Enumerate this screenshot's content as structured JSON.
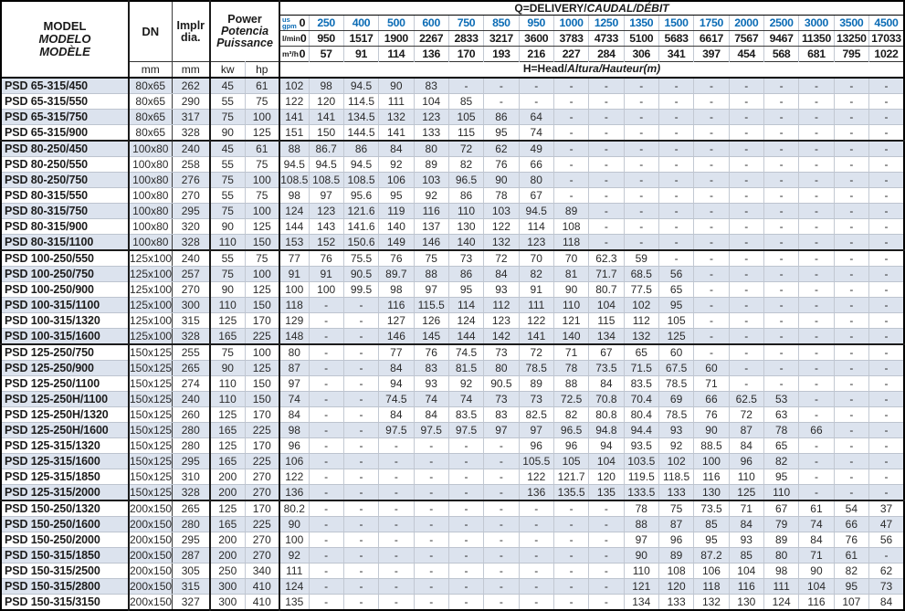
{
  "colors": {
    "accent_blue": "#0c6cb5",
    "row_shade": "#dce3ee",
    "grid_dark": "#1b1b1b",
    "grid_light": "#c2c8d2"
  },
  "table": {
    "header": {
      "model": {
        "line1": "MODEL",
        "line2": "MODELO",
        "line3": "MODÈLE"
      },
      "dn_label": "DN",
      "implr": {
        "line1": "Implr",
        "line2": "dia."
      },
      "power": {
        "line1": "Power",
        "line2": "Potencia",
        "line3": "Puissance"
      },
      "units": {
        "mm1": "mm",
        "mm2": "mm",
        "kw": "kw",
        "hp": "hp"
      },
      "q_title": {
        "plain": "Q=DELIVERY/",
        "italic": "CAUDAL/DÉBIT"
      },
      "h_title": {
        "plain": "H=Head/",
        "italic": "Altura/Hauteur",
        "suffix": "(m)"
      },
      "flow_rows": [
        {
          "unit_top": "us",
          "unit_bottom": "gpm",
          "values": [
            "0",
            "250",
            "400",
            "500",
            "600",
            "750",
            "850",
            "950",
            "1000",
            "1250",
            "1350",
            "1500",
            "1750",
            "2000",
            "2500",
            "3000",
            "3500",
            "4500"
          ]
        },
        {
          "unit": "l/min",
          "values": [
            "0",
            "950",
            "1517",
            "1900",
            "2267",
            "2833",
            "3217",
            "3600",
            "3783",
            "4733",
            "5100",
            "5683",
            "6617",
            "7567",
            "9467",
            "11350",
            "13250",
            "17033"
          ]
        },
        {
          "unit": "m³/h",
          "values": [
            "0",
            "57",
            "91",
            "114",
            "136",
            "170",
            "193",
            "216",
            "227",
            "284",
            "306",
            "341",
            "397",
            "454",
            "568",
            "681",
            "795",
            "1022"
          ]
        }
      ]
    },
    "rows": [
      {
        "model": "PSD 65-315/450",
        "dn": "80x65",
        "dia": "262",
        "kw": "45",
        "hp": "61",
        "shaded": true,
        "group_end": false,
        "heads": [
          "102",
          "98",
          "94.5",
          "90",
          "83",
          "-",
          "-",
          "-",
          "-",
          "-",
          "-",
          "-",
          "-",
          "-",
          "-",
          "-",
          "-",
          "-"
        ]
      },
      {
        "model": "PSD 65-315/550",
        "dn": "80x65",
        "dia": "290",
        "kw": "55",
        "hp": "75",
        "shaded": false,
        "group_end": false,
        "heads": [
          "122",
          "120",
          "114.5",
          "111",
          "104",
          "85",
          "-",
          "-",
          "-",
          "-",
          "-",
          "-",
          "-",
          "-",
          "-",
          "-",
          "-",
          "-"
        ]
      },
      {
        "model": "PSD 65-315/750",
        "dn": "80x65",
        "dia": "317",
        "kw": "75",
        "hp": "100",
        "shaded": true,
        "group_end": false,
        "heads": [
          "141",
          "141",
          "134.5",
          "132",
          "123",
          "105",
          "86",
          "64",
          "-",
          "-",
          "-",
          "-",
          "-",
          "-",
          "-",
          "-",
          "-",
          "-"
        ]
      },
      {
        "model": "PSD 65-315/900",
        "dn": "80x65",
        "dia": "328",
        "kw": "90",
        "hp": "125",
        "shaded": false,
        "group_end": true,
        "heads": [
          "151",
          "150",
          "144.5",
          "141",
          "133",
          "115",
          "95",
          "74",
          "-",
          "-",
          "-",
          "-",
          "-",
          "-",
          "-",
          "-",
          "-",
          "-"
        ]
      },
      {
        "model": "PSD 80-250/450",
        "dn": "100x80",
        "dia": "240",
        "kw": "45",
        "hp": "61",
        "shaded": true,
        "group_end": false,
        "heads": [
          "88",
          "86.7",
          "86",
          "84",
          "80",
          "72",
          "62",
          "49",
          "-",
          "-",
          "-",
          "-",
          "-",
          "-",
          "-",
          "-",
          "-",
          "-"
        ]
      },
      {
        "model": "PSD 80-250/550",
        "dn": "100x80",
        "dia": "258",
        "kw": "55",
        "hp": "75",
        "shaded": false,
        "group_end": false,
        "heads": [
          "94.5",
          "94.5",
          "94.5",
          "92",
          "89",
          "82",
          "76",
          "66",
          "-",
          "-",
          "-",
          "-",
          "-",
          "-",
          "-",
          "-",
          "-",
          "-"
        ]
      },
      {
        "model": "PSD 80-250/750",
        "dn": "100x80",
        "dia": "276",
        "kw": "75",
        "hp": "100",
        "shaded": true,
        "group_end": false,
        "heads": [
          "108.5",
          "108.5",
          "108.5",
          "106",
          "103",
          "96.5",
          "90",
          "80",
          "-",
          "-",
          "-",
          "-",
          "-",
          "-",
          "-",
          "-",
          "-",
          "-"
        ]
      },
      {
        "model": "PSD 80-315/550",
        "dn": "100x80",
        "dia": "270",
        "kw": "55",
        "hp": "75",
        "shaded": false,
        "group_end": false,
        "heads": [
          "98",
          "97",
          "95.6",
          "95",
          "92",
          "86",
          "78",
          "67",
          "-",
          "-",
          "-",
          "-",
          "-",
          "-",
          "-",
          "-",
          "-",
          "-"
        ]
      },
      {
        "model": "PSD 80-315/750",
        "dn": "100x80",
        "dia": "295",
        "kw": "75",
        "hp": "100",
        "shaded": true,
        "group_end": false,
        "heads": [
          "124",
          "123",
          "121.6",
          "119",
          "116",
          "110",
          "103",
          "94.5",
          "89",
          "-",
          "-",
          "-",
          "-",
          "-",
          "-",
          "-",
          "-",
          "-"
        ]
      },
      {
        "model": "PSD 80-315/900",
        "dn": "100x80",
        "dia": "320",
        "kw": "90",
        "hp": "125",
        "shaded": false,
        "group_end": false,
        "heads": [
          "144",
          "143",
          "141.6",
          "140",
          "137",
          "130",
          "122",
          "114",
          "108",
          "-",
          "-",
          "-",
          "-",
          "-",
          "-",
          "-",
          "-",
          "-"
        ]
      },
      {
        "model": "PSD 80-315/1100",
        "dn": "100x80",
        "dia": "328",
        "kw": "110",
        "hp": "150",
        "shaded": true,
        "group_end": true,
        "heads": [
          "153",
          "152",
          "150.6",
          "149",
          "146",
          "140",
          "132",
          "123",
          "118",
          "-",
          "-",
          "-",
          "-",
          "-",
          "-",
          "-",
          "-",
          "-"
        ]
      },
      {
        "model": "PSD 100-250/550",
        "dn": "125x100",
        "dia": "240",
        "kw": "55",
        "hp": "75",
        "shaded": false,
        "group_end": false,
        "heads": [
          "77",
          "76",
          "75.5",
          "76",
          "75",
          "73",
          "72",
          "70",
          "70",
          "62.3",
          "59",
          "-",
          "-",
          "-",
          "-",
          "-",
          "-",
          "-"
        ]
      },
      {
        "model": "PSD 100-250/750",
        "dn": "125x100",
        "dia": "257",
        "kw": "75",
        "hp": "100",
        "shaded": true,
        "group_end": false,
        "heads": [
          "91",
          "91",
          "90.5",
          "89.7",
          "88",
          "86",
          "84",
          "82",
          "81",
          "71.7",
          "68.5",
          "56",
          "-",
          "-",
          "-",
          "-",
          "-",
          "-"
        ]
      },
      {
        "model": "PSD 100-250/900",
        "dn": "125x100",
        "dia": "270",
        "kw": "90",
        "hp": "125",
        "shaded": false,
        "group_end": false,
        "heads": [
          "100",
          "100",
          "99.5",
          "98",
          "97",
          "95",
          "93",
          "91",
          "90",
          "80.7",
          "77.5",
          "65",
          "-",
          "-",
          "-",
          "-",
          "-",
          "-"
        ]
      },
      {
        "model": "PSD 100-315/1100",
        "dn": "125x100",
        "dia": "300",
        "kw": "110",
        "hp": "150",
        "shaded": true,
        "group_end": false,
        "heads": [
          "118",
          "-",
          "-",
          "116",
          "115.5",
          "114",
          "112",
          "111",
          "110",
          "104",
          "102",
          "95",
          "-",
          "-",
          "-",
          "-",
          "-",
          "-"
        ]
      },
      {
        "model": "PSD 100-315/1320",
        "dn": "125x100",
        "dia": "315",
        "kw": "125",
        "hp": "170",
        "shaded": false,
        "group_end": false,
        "heads": [
          "129",
          "-",
          "-",
          "127",
          "126",
          "124",
          "123",
          "122",
          "121",
          "115",
          "112",
          "105",
          "-",
          "-",
          "-",
          "-",
          "-",
          "-"
        ]
      },
      {
        "model": "PSD 100-315/1600",
        "dn": "125x100",
        "dia": "328",
        "kw": "165",
        "hp": "225",
        "shaded": true,
        "group_end": true,
        "heads": [
          "148",
          "-",
          "-",
          "146",
          "145",
          "144",
          "142",
          "141",
          "140",
          "134",
          "132",
          "125",
          "-",
          "-",
          "-",
          "-",
          "-",
          "-"
        ]
      },
      {
        "model": "PSD 125-250/750",
        "dn": "150x125",
        "dia": "255",
        "kw": "75",
        "hp": "100",
        "shaded": false,
        "group_end": false,
        "heads": [
          "80",
          "-",
          "-",
          "77",
          "76",
          "74.5",
          "73",
          "72",
          "71",
          "67",
          "65",
          "60",
          "-",
          "-",
          "-",
          "-",
          "-",
          "-"
        ]
      },
      {
        "model": "PSD 125-250/900",
        "dn": "150x125",
        "dia": "265",
        "kw": "90",
        "hp": "125",
        "shaded": true,
        "group_end": false,
        "heads": [
          "87",
          "-",
          "-",
          "84",
          "83",
          "81.5",
          "80",
          "78.5",
          "78",
          "73.5",
          "71.5",
          "67.5",
          "60",
          "-",
          "-",
          "-",
          "-",
          "-"
        ]
      },
      {
        "model": "PSD 125-250/1100",
        "dn": "150x125",
        "dia": "274",
        "kw": "110",
        "hp": "150",
        "shaded": false,
        "group_end": false,
        "heads": [
          "97",
          "-",
          "-",
          "94",
          "93",
          "92",
          "90.5",
          "89",
          "88",
          "84",
          "83.5",
          "78.5",
          "71",
          "-",
          "-",
          "-",
          "-",
          "-"
        ]
      },
      {
        "model": "PSD 125-250H/1100",
        "dn": "150x125",
        "dia": "240",
        "kw": "110",
        "hp": "150",
        "shaded": true,
        "group_end": false,
        "heads": [
          "74",
          "-",
          "-",
          "74.5",
          "74",
          "74",
          "73",
          "73",
          "72.5",
          "70.8",
          "70.4",
          "69",
          "66",
          "62.5",
          "53",
          "-",
          "-",
          "-"
        ]
      },
      {
        "model": "PSD 125-250H/1320",
        "dn": "150x125",
        "dia": "260",
        "kw": "125",
        "hp": "170",
        "shaded": false,
        "group_end": false,
        "heads": [
          "84",
          "-",
          "-",
          "84",
          "84",
          "83.5",
          "83",
          "82.5",
          "82",
          "80.8",
          "80.4",
          "78.5",
          "76",
          "72",
          "63",
          "-",
          "-",
          "-"
        ]
      },
      {
        "model": "PSD 125-250H/1600",
        "dn": "150x125",
        "dia": "280",
        "kw": "165",
        "hp": "225",
        "shaded": true,
        "group_end": false,
        "heads": [
          "98",
          "-",
          "-",
          "97.5",
          "97.5",
          "97.5",
          "97",
          "97",
          "96.5",
          "94.8",
          "94.4",
          "93",
          "90",
          "87",
          "78",
          "66",
          "-",
          "-"
        ]
      },
      {
        "model": "PSD 125-315/1320",
        "dn": "150x125",
        "dia": "280",
        "kw": "125",
        "hp": "170",
        "shaded": false,
        "group_end": false,
        "heads": [
          "96",
          "-",
          "-",
          "-",
          "-",
          "-",
          "-",
          "96",
          "96",
          "94",
          "93.5",
          "92",
          "88.5",
          "84",
          "65",
          "-",
          "-",
          "-"
        ]
      },
      {
        "model": "PSD 125-315/1600",
        "dn": "150x125",
        "dia": "295",
        "kw": "165",
        "hp": "225",
        "shaded": true,
        "group_end": false,
        "heads": [
          "106",
          "-",
          "-",
          "-",
          "-",
          "-",
          "-",
          "105.5",
          "105",
          "104",
          "103.5",
          "102",
          "100",
          "96",
          "82",
          "-",
          "-",
          "-"
        ]
      },
      {
        "model": "PSD 125-315/1850",
        "dn": "150x125",
        "dia": "310",
        "kw": "200",
        "hp": "270",
        "shaded": false,
        "group_end": false,
        "heads": [
          "122",
          "-",
          "-",
          "-",
          "-",
          "-",
          "-",
          "122",
          "121.7",
          "120",
          "119.5",
          "118.5",
          "116",
          "110",
          "95",
          "-",
          "-",
          "-"
        ]
      },
      {
        "model": "PSD 125-315/2000",
        "dn": "150x125",
        "dia": "328",
        "kw": "200",
        "hp": "270",
        "shaded": true,
        "group_end": true,
        "heads": [
          "136",
          "-",
          "-",
          "-",
          "-",
          "-",
          "-",
          "136",
          "135.5",
          "135",
          "133.5",
          "133",
          "130",
          "125",
          "110",
          "-",
          "-",
          "-"
        ]
      },
      {
        "model": "PSD 150-250/1320",
        "dn": "200x150",
        "dia": "265",
        "kw": "125",
        "hp": "170",
        "shaded": false,
        "group_end": false,
        "heads": [
          "80.2",
          "-",
          "-",
          "-",
          "-",
          "-",
          "-",
          "-",
          "-",
          "-",
          "78",
          "75",
          "73.5",
          "71",
          "67",
          "61",
          "54",
          "37"
        ]
      },
      {
        "model": "PSD 150-250/1600",
        "dn": "200x150",
        "dia": "280",
        "kw": "165",
        "hp": "225",
        "shaded": true,
        "group_end": false,
        "heads": [
          "90",
          "-",
          "-",
          "-",
          "-",
          "-",
          "-",
          "-",
          "-",
          "-",
          "88",
          "87",
          "85",
          "84",
          "79",
          "74",
          "66",
          "47"
        ]
      },
      {
        "model": "PSD 150-250/2000",
        "dn": "200x150",
        "dia": "295",
        "kw": "200",
        "hp": "270",
        "shaded": false,
        "group_end": false,
        "heads": [
          "100",
          "-",
          "-",
          "-",
          "-",
          "-",
          "-",
          "-",
          "-",
          "-",
          "97",
          "96",
          "95",
          "93",
          "89",
          "84",
          "76",
          "56"
        ]
      },
      {
        "model": "PSD 150-315/1850",
        "dn": "200x150",
        "dia": "287",
        "kw": "200",
        "hp": "270",
        "shaded": true,
        "group_end": false,
        "heads": [
          "92",
          "-",
          "-",
          "-",
          "-",
          "-",
          "-",
          "-",
          "-",
          "-",
          "90",
          "89",
          "87.2",
          "85",
          "80",
          "71",
          "61",
          "-"
        ]
      },
      {
        "model": "PSD 150-315/2500",
        "dn": "200x150",
        "dia": "305",
        "kw": "250",
        "hp": "340",
        "shaded": false,
        "group_end": false,
        "heads": [
          "111",
          "-",
          "-",
          "-",
          "-",
          "-",
          "-",
          "-",
          "-",
          "-",
          "110",
          "108",
          "106",
          "104",
          "98",
          "90",
          "82",
          "62"
        ]
      },
      {
        "model": "PSD 150-315/2800",
        "dn": "200x150",
        "dia": "315",
        "kw": "300",
        "hp": "410",
        "shaded": true,
        "group_end": false,
        "heads": [
          "124",
          "-",
          "-",
          "-",
          "-",
          "-",
          "-",
          "-",
          "-",
          "-",
          "121",
          "120",
          "118",
          "116",
          "111",
          "104",
          "95",
          "73"
        ]
      },
      {
        "model": "PSD 150-315/3150",
        "dn": "200x150",
        "dia": "327",
        "kw": "300",
        "hp": "410",
        "shaded": false,
        "group_end": false,
        "heads": [
          "135",
          "-",
          "-",
          "-",
          "-",
          "-",
          "-",
          "-",
          "-",
          "-",
          "134",
          "133",
          "132",
          "130",
          "124",
          "116",
          "107",
          "84"
        ]
      }
    ]
  }
}
